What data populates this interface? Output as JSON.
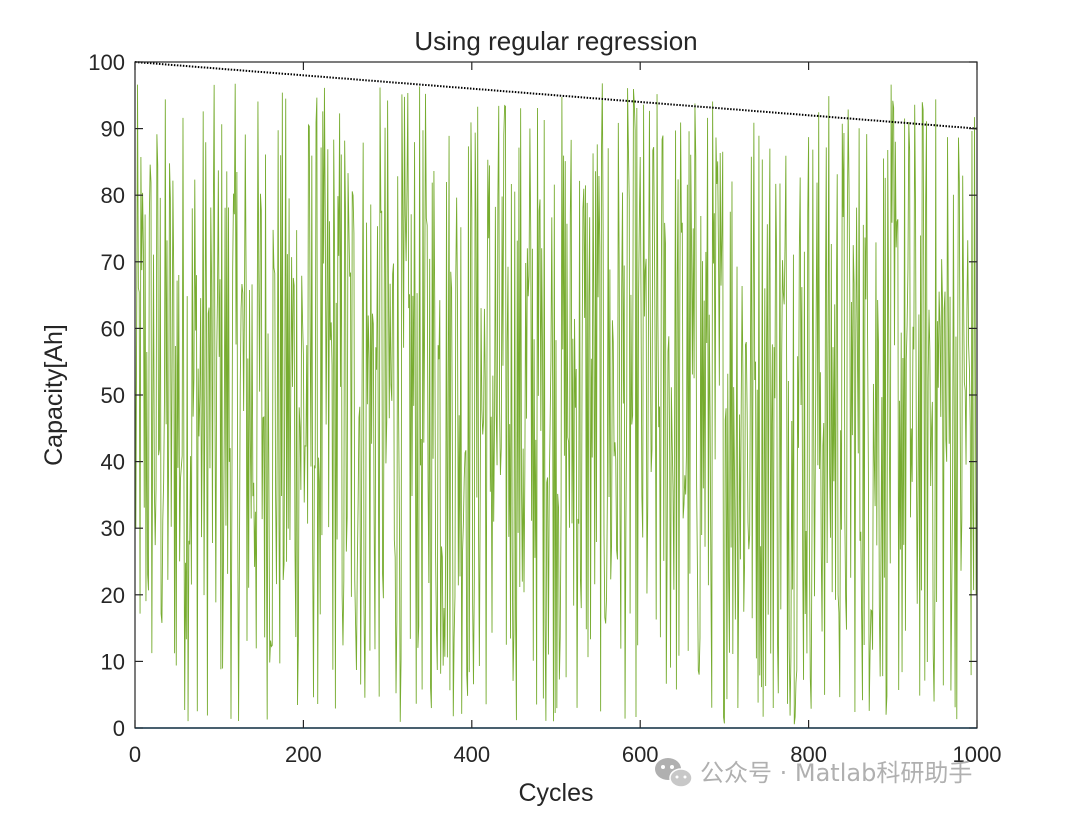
{
  "watermark": {
    "icon": "wechat-icon",
    "text": "公众号 · Matlab科研助手",
    "color": "#b0b0b0"
  },
  "chart_data": {
    "type": "line",
    "title": "Using regular regression",
    "xlabel": "Cycles",
    "ylabel": "Capacity[Ah]",
    "xlim": [
      0,
      1000
    ],
    "ylim": [
      0,
      100
    ],
    "xticks": [
      0,
      200,
      400,
      600,
      800,
      1000
    ],
    "yticks": [
      0,
      10,
      20,
      30,
      40,
      50,
      60,
      70,
      80,
      90,
      100
    ],
    "grid": false,
    "legend": "none",
    "series": [
      {
        "style": "noisy-line",
        "color": "#77ac30",
        "x_range": [
          0,
          1000
        ],
        "value_range": [
          0.5,
          97
        ],
        "description_values": "random fluctuation between about 0 and 97 over cycles 0-1000"
      },
      {
        "style": "dotted",
        "color": "#000000",
        "x": [
          0,
          1000
        ],
        "values": [
          100,
          90
        ]
      },
      {
        "style": "solid",
        "color": "#0072bd",
        "x": [
          0,
          1000
        ],
        "values": [
          0,
          0
        ]
      }
    ]
  }
}
